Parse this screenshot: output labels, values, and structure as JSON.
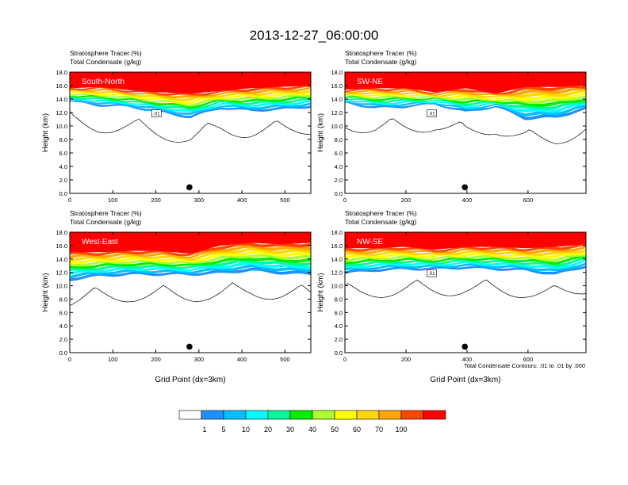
{
  "figure": {
    "title": "2013-12-27_06:00:00",
    "contour_note": "Total Condensate Contours: .01 to .01 by .000",
    "xlabel": "Grid Point (dx=3km)"
  },
  "colorbar": {
    "colors": [
      "#ffffff",
      "#1e90ff",
      "#00bfff",
      "#00ffff",
      "#00fa9a",
      "#00ee00",
      "#adff2f",
      "#ffff00",
      "#ffd700",
      "#ffa500",
      "#ff4500",
      "#ff0000"
    ],
    "labels": [
      "1",
      "5",
      "10",
      "20",
      "30",
      "40",
      "50",
      "60",
      "70",
      "100"
    ]
  },
  "chart_data": [
    {
      "type": "heatmap",
      "panel": "South-North",
      "title_lines": [
        "Stratosphere Tracer   (%)",
        "Total Condensate   (g/kg)"
      ],
      "ylabel": "Height (km)",
      "xlabel": "",
      "xlim": [
        0,
        560
      ],
      "ylim": [
        0,
        18
      ],
      "xticks": [
        0,
        100,
        200,
        300,
        400,
        500
      ],
      "yticks": [
        "0.0",
        "2.0",
        "4.0",
        "6.0",
        "8.0",
        "10.0",
        "12.0",
        "14.0",
        "16.0",
        "18.0"
      ],
      "red_layer_base_km": [
        15.6,
        15.8,
        15.3,
        15.0,
        14.8,
        15.2,
        15.6,
        15.8,
        16.0
      ],
      "tracer_base_km": [
        13.6,
        13.0,
        12.8,
        12.0,
        11.2,
        12.6,
        12.2,
        12.4,
        12.8
      ],
      "contour_label": ".01",
      "marker_x": 278
    },
    {
      "type": "heatmap",
      "panel": "SW-NE",
      "title_lines": [
        "Stratosphere Tracer   (%)",
        "Total Condensate   (g/kg)"
      ],
      "ylabel": "Height (km)",
      "xlabel": "",
      "xlim": [
        0,
        790
      ],
      "ylim": [
        0,
        18
      ],
      "xticks": [
        0,
        200,
        400,
        600
      ],
      "yticks": [
        "0.0",
        "2.0",
        "4.0",
        "6.0",
        "8.0",
        "10.0",
        "12.0",
        "14.0",
        "16.0",
        "18.0"
      ],
      "red_layer_base_km": [
        15.4,
        15.6,
        15.6,
        15.0,
        15.6,
        14.8,
        15.8,
        15.8,
        16.0
      ],
      "tracer_base_km": [
        13.4,
        12.6,
        12.8,
        13.2,
        12.0,
        12.8,
        11.0,
        11.2,
        12.4
      ],
      "contour_label": ".01",
      "marker_x": 393
    },
    {
      "type": "heatmap",
      "panel": "West-East",
      "title_lines": [
        "Stratosphere Tracer   (%)",
        "Total Condensate   (g/kg)"
      ],
      "ylabel": "Height (km)",
      "xlabel": "Grid Point (dx=3km)",
      "xlim": [
        0,
        560
      ],
      "ylim": [
        0,
        18
      ],
      "xticks": [
        0,
        100,
        200,
        300,
        400,
        500
      ],
      "yticks": [
        "0.0",
        "2.0",
        "4.0",
        "6.0",
        "8.0",
        "10.0",
        "12.0",
        "14.0",
        "16.0",
        "18.0"
      ],
      "red_layer_base_km": [
        15.0,
        15.0,
        15.2,
        15.2,
        14.8,
        16.0,
        16.4,
        16.2,
        16.4
      ],
      "tracer_base_km": [
        10.8,
        11.4,
        11.6,
        11.6,
        11.6,
        11.8,
        12.2,
        11.8,
        11.6
      ],
      "contour_label": "",
      "marker_x": 278
    },
    {
      "type": "heatmap",
      "panel": "NW-SE",
      "title_lines": [
        "Stratosphere Tracer   (%)",
        "Total Condensate   (g/kg)"
      ],
      "ylabel": "Height (km)",
      "xlabel": "Grid Point (dx=3km)",
      "xlim": [
        0,
        790
      ],
      "ylim": [
        0,
        18
      ],
      "xticks": [
        0,
        200,
        400,
        600
      ],
      "yticks": [
        "0.0",
        "2.0",
        "4.0",
        "6.0",
        "8.0",
        "10.0",
        "12.0",
        "14.0",
        "16.0",
        "18.0"
      ],
      "red_layer_base_km": [
        15.6,
        15.6,
        15.8,
        15.4,
        15.8,
        15.8,
        15.6,
        15.8,
        16.2
      ],
      "tracer_base_km": [
        11.8,
        12.2,
        12.4,
        12.4,
        12.6,
        12.4,
        12.2,
        11.6,
        12.8
      ],
      "contour_label": ".01",
      "marker_x": 393
    }
  ]
}
